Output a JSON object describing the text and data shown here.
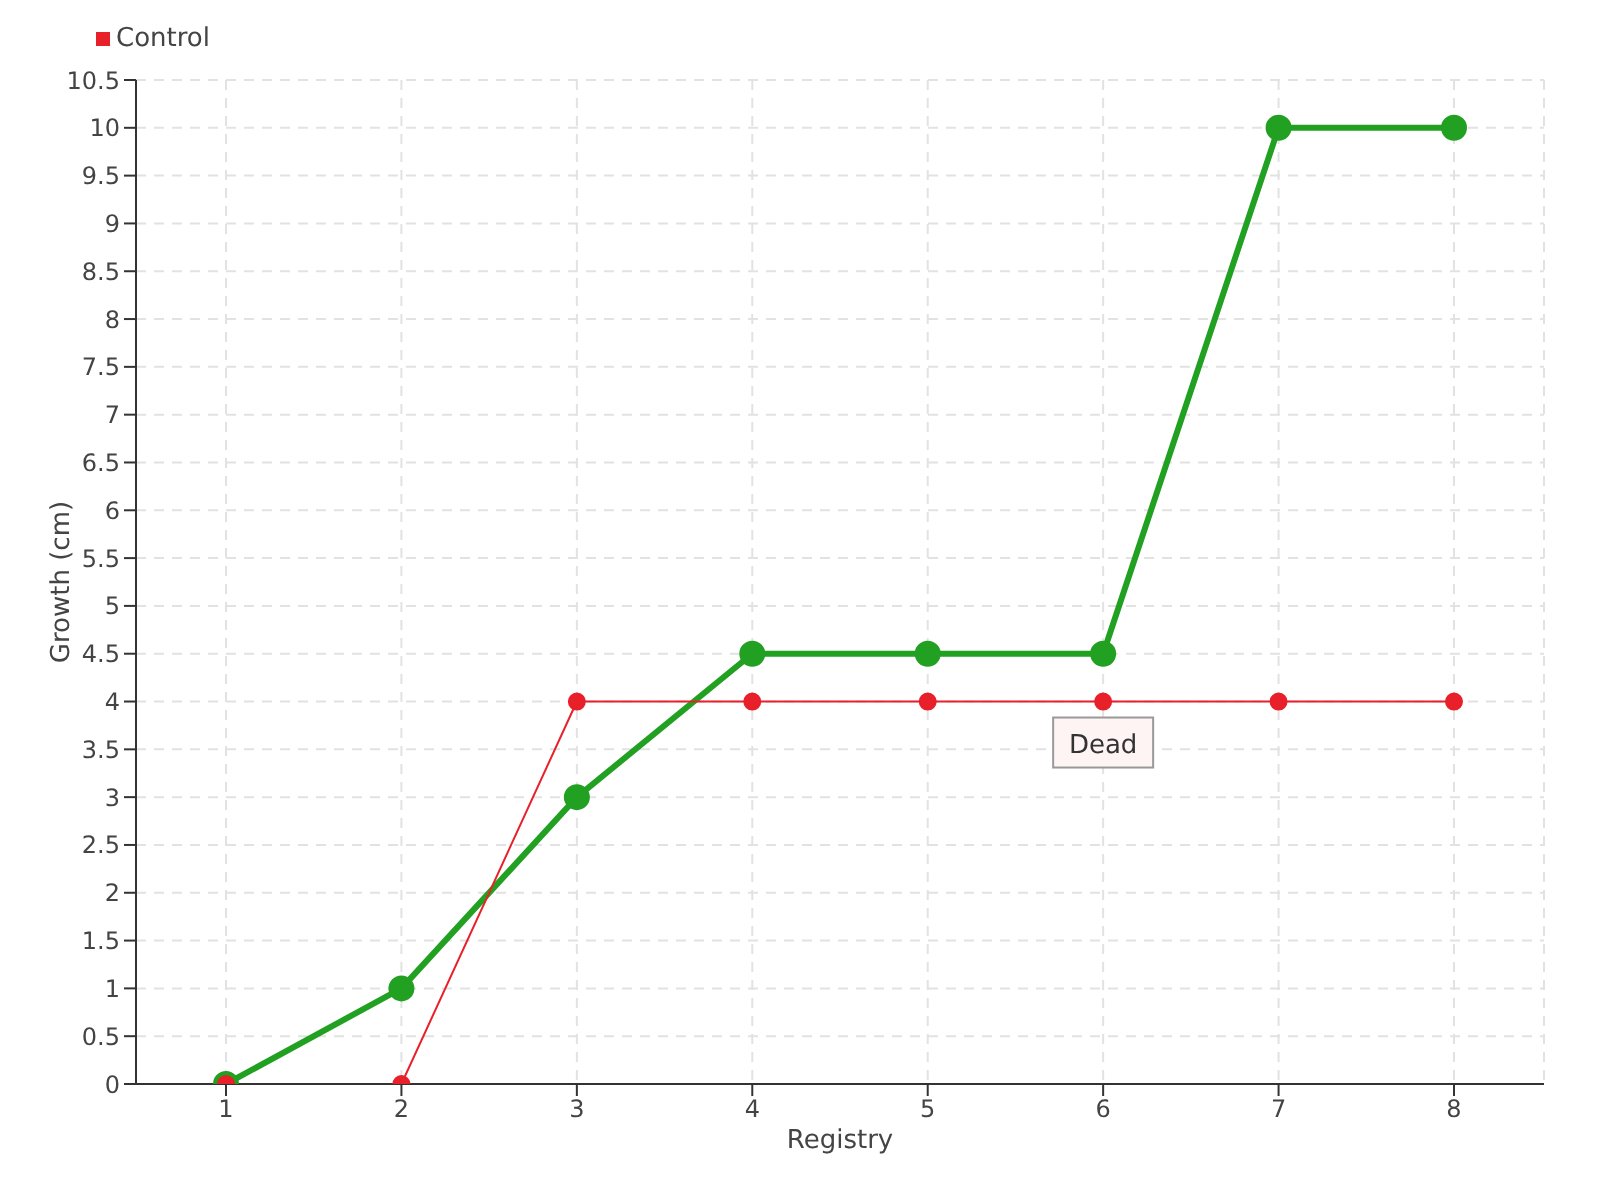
{
  "chart_data": {
    "type": "line",
    "xlabel": "Registry",
    "ylabel": "Growth (cm)",
    "categories": [
      "1",
      "2",
      "3",
      "4",
      "5",
      "6",
      "7",
      "8"
    ],
    "series": [
      {
        "color": "#22a022",
        "values": [
          0,
          1,
          3,
          4.5,
          4.5,
          4.5,
          10,
          10
        ]
      },
      {
        "name": "Control",
        "color": "#e8202a",
        "values": [
          0,
          0,
          4,
          4,
          4,
          4,
          4,
          4
        ]
      }
    ],
    "ylim": [
      0,
      10.5
    ],
    "yticks": [
      0,
      0.5,
      1,
      1.5,
      2,
      2.5,
      3,
      3.5,
      4,
      4.5,
      5,
      5.5,
      6,
      6.5,
      7,
      7.5,
      8,
      8.5,
      9,
      9.5,
      10,
      10.5
    ],
    "grid": true,
    "legend": "top left",
    "marker": "circle",
    "line_style": "solid",
    "annotations": [
      {
        "text": "Dead",
        "x": "6",
        "y": 4
      }
    ]
  }
}
